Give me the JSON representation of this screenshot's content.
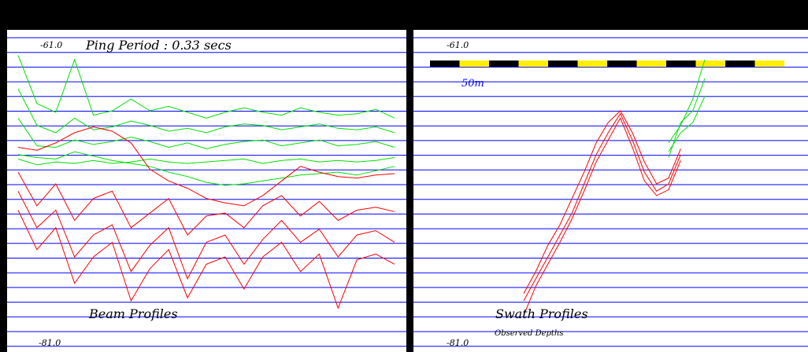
{
  "window": {
    "background": "#000000"
  },
  "colors": {
    "panel_bg": "#ffffff",
    "grid": "#0000ff",
    "series_green": "#00e000",
    "series_red": "#ff0000",
    "scale_black": "#000000",
    "scale_yellow": "#ffee00",
    "scale_text": "#0000ff"
  },
  "chart_data": [
    {
      "type": "line",
      "name": "beam-profiles",
      "title": "Beam Profiles",
      "top_label": "-61.0",
      "bottom_label": "-81.0",
      "ping_label": "Ping Period : 0.33 secs",
      "ylim": [
        -61.0,
        -81.0
      ],
      "grid": true,
      "x": [
        0,
        0.05,
        0.1,
        0.15,
        0.2,
        0.25,
        0.3,
        0.35,
        0.4,
        0.45,
        0.5,
        0.55,
        0.6,
        0.65,
        0.7,
        0.75,
        0.8,
        0.85,
        0.9,
        0.95,
        1.0
      ],
      "series": [
        {
          "color_key": "series_green",
          "values": [
            -62.2,
            -65.5,
            -66.1,
            -62.5,
            -66.3,
            -66.0,
            -65.2,
            -66.0,
            -65.7,
            -66.1,
            -66.5,
            -66.1,
            -65.8,
            -66.1,
            -66.3,
            -65.8,
            -66.1,
            -66.3,
            -66.2,
            -65.9,
            -66.5
          ]
        },
        {
          "color_key": "series_green",
          "values": [
            -64.5,
            -67.0,
            -67.5,
            -66.5,
            -67.3,
            -67.1,
            -66.7,
            -67.0,
            -67.4,
            -67.2,
            -67.5,
            -67.1,
            -66.9,
            -67.0,
            -67.3,
            -67.1,
            -66.9,
            -67.2,
            -67.3,
            -67.1,
            -67.5
          ]
        },
        {
          "color_key": "series_green",
          "values": [
            -66.5,
            -68.4,
            -68.5,
            -68.0,
            -68.3,
            -68.1,
            -67.8,
            -68.1,
            -68.5,
            -68.2,
            -68.6,
            -68.3,
            -68.1,
            -68.0,
            -68.4,
            -68.2,
            -68.0,
            -68.4,
            -68.3,
            -68.1,
            -68.5
          ]
        },
        {
          "color_key": "series_green",
          "values": [
            -69.3,
            -69.7,
            -69.5,
            -69.6,
            -69.4,
            -69.6,
            -69.5,
            -69.3,
            -69.5,
            -69.6,
            -69.5,
            -69.4,
            -69.3,
            -69.6,
            -69.4,
            -69.3,
            -69.5,
            -69.4,
            -69.5,
            -69.4,
            -69.2
          ]
        },
        {
          "color_key": "series_green",
          "values": [
            -69.0,
            -69.2,
            -69.3,
            -68.8,
            -69.1,
            -69.4,
            -69.6,
            -69.8,
            -70.2,
            -70.5,
            -70.9,
            -71.1,
            -71.0,
            -70.8,
            -70.6,
            -70.4,
            -70.3,
            -70.2,
            -70.4,
            -70.1,
            -69.8
          ]
        },
        {
          "color_key": "series_red",
          "values": [
            -68.5,
            -68.7,
            -68.2,
            -67.5,
            -67.1,
            -67.4,
            -68.2,
            -70.0,
            -70.8,
            -71.3,
            -72.0,
            -72.3,
            -72.5,
            -71.8,
            -70.8,
            -69.8,
            -70.2,
            -70.5,
            -70.6,
            -70.4,
            -70.3
          ]
        },
        {
          "color_key": "series_red",
          "values": [
            -70.2,
            -72.5,
            -71.0,
            -73.5,
            -72.0,
            -71.5,
            -74.0,
            -73.0,
            -72.0,
            -74.5,
            -73.2,
            -73.0,
            -74.0,
            -72.5,
            -71.8,
            -73.2,
            -72.2,
            -73.5,
            -72.8,
            -72.6,
            -72.9
          ]
        },
        {
          "color_key": "series_red",
          "values": [
            -71.5,
            -74.0,
            -72.8,
            -76.0,
            -74.5,
            -73.8,
            -77.0,
            -75.2,
            -74.0,
            -77.5,
            -75.0,
            -74.5,
            -76.5,
            -74.8,
            -73.5,
            -75.0,
            -74.1,
            -76.0,
            -74.5,
            -74.2,
            -75.0
          ]
        },
        {
          "color_key": "series_red",
          "values": [
            -72.8,
            -75.5,
            -74.0,
            -77.8,
            -76.0,
            -75.0,
            -79.0,
            -76.8,
            -75.5,
            -78.8,
            -76.5,
            -76.0,
            -78.2,
            -76.0,
            -75.0,
            -77.0,
            -75.8,
            -79.5,
            -76.2,
            -75.8,
            -76.5
          ]
        }
      ]
    },
    {
      "type": "line",
      "name": "swath-profiles",
      "title": "Swath Profiles",
      "subtitle": "Observed Depths",
      "top_label": "-61.0",
      "bottom_label": "-81.0",
      "scale_label": "50m",
      "ylim": [
        -61.0,
        -81.0
      ],
      "grid": true,
      "scale_segments": 12,
      "x": [
        0.0,
        0.04,
        0.08,
        0.12,
        0.16,
        0.2,
        0.24,
        0.28,
        0.32,
        0.36,
        0.4,
        0.44,
        0.48,
        0.52,
        0.56,
        0.6
      ],
      "series": [
        {
          "color_key": "series_red",
          "values": [
            -79.0,
            -77.5,
            -76.0,
            -74.5,
            -73.0,
            -71.0,
            -69.0,
            -67.5,
            -66.2,
            -68.0,
            -70.2,
            -71.5,
            -71.0,
            -69.0,
            null,
            null
          ]
        },
        {
          "color_key": "series_red",
          "values": [
            -78.5,
            -77.0,
            -75.2,
            -73.8,
            -72.0,
            -70.2,
            -68.2,
            -66.8,
            -66.0,
            -67.5,
            -69.5,
            -71.0,
            -70.6,
            -68.6,
            null,
            null
          ]
        },
        {
          "color_key": "series_red",
          "values": [
            -80.0,
            -78.0,
            -76.5,
            -75.0,
            -73.4,
            -71.5,
            -69.5,
            -68.0,
            -66.5,
            -68.5,
            -70.8,
            -71.8,
            -71.4,
            -69.4,
            null,
            null
          ]
        },
        {
          "color_key": "series_green",
          "values": [
            null,
            null,
            null,
            null,
            null,
            null,
            null,
            null,
            null,
            null,
            null,
            null,
            -68.8,
            -67.5,
            -66.8,
            -65.0
          ]
        },
        {
          "color_key": "series_green",
          "values": [
            null,
            null,
            null,
            null,
            null,
            null,
            null,
            null,
            null,
            null,
            null,
            null,
            -69.2,
            -66.8,
            -66.0,
            -63.8
          ]
        },
        {
          "color_key": "series_green",
          "values": [
            null,
            null,
            null,
            null,
            null,
            null,
            null,
            null,
            null,
            null,
            null,
            null,
            -68.2,
            -67.0,
            -65.2,
            -62.5
          ]
        }
      ]
    }
  ]
}
